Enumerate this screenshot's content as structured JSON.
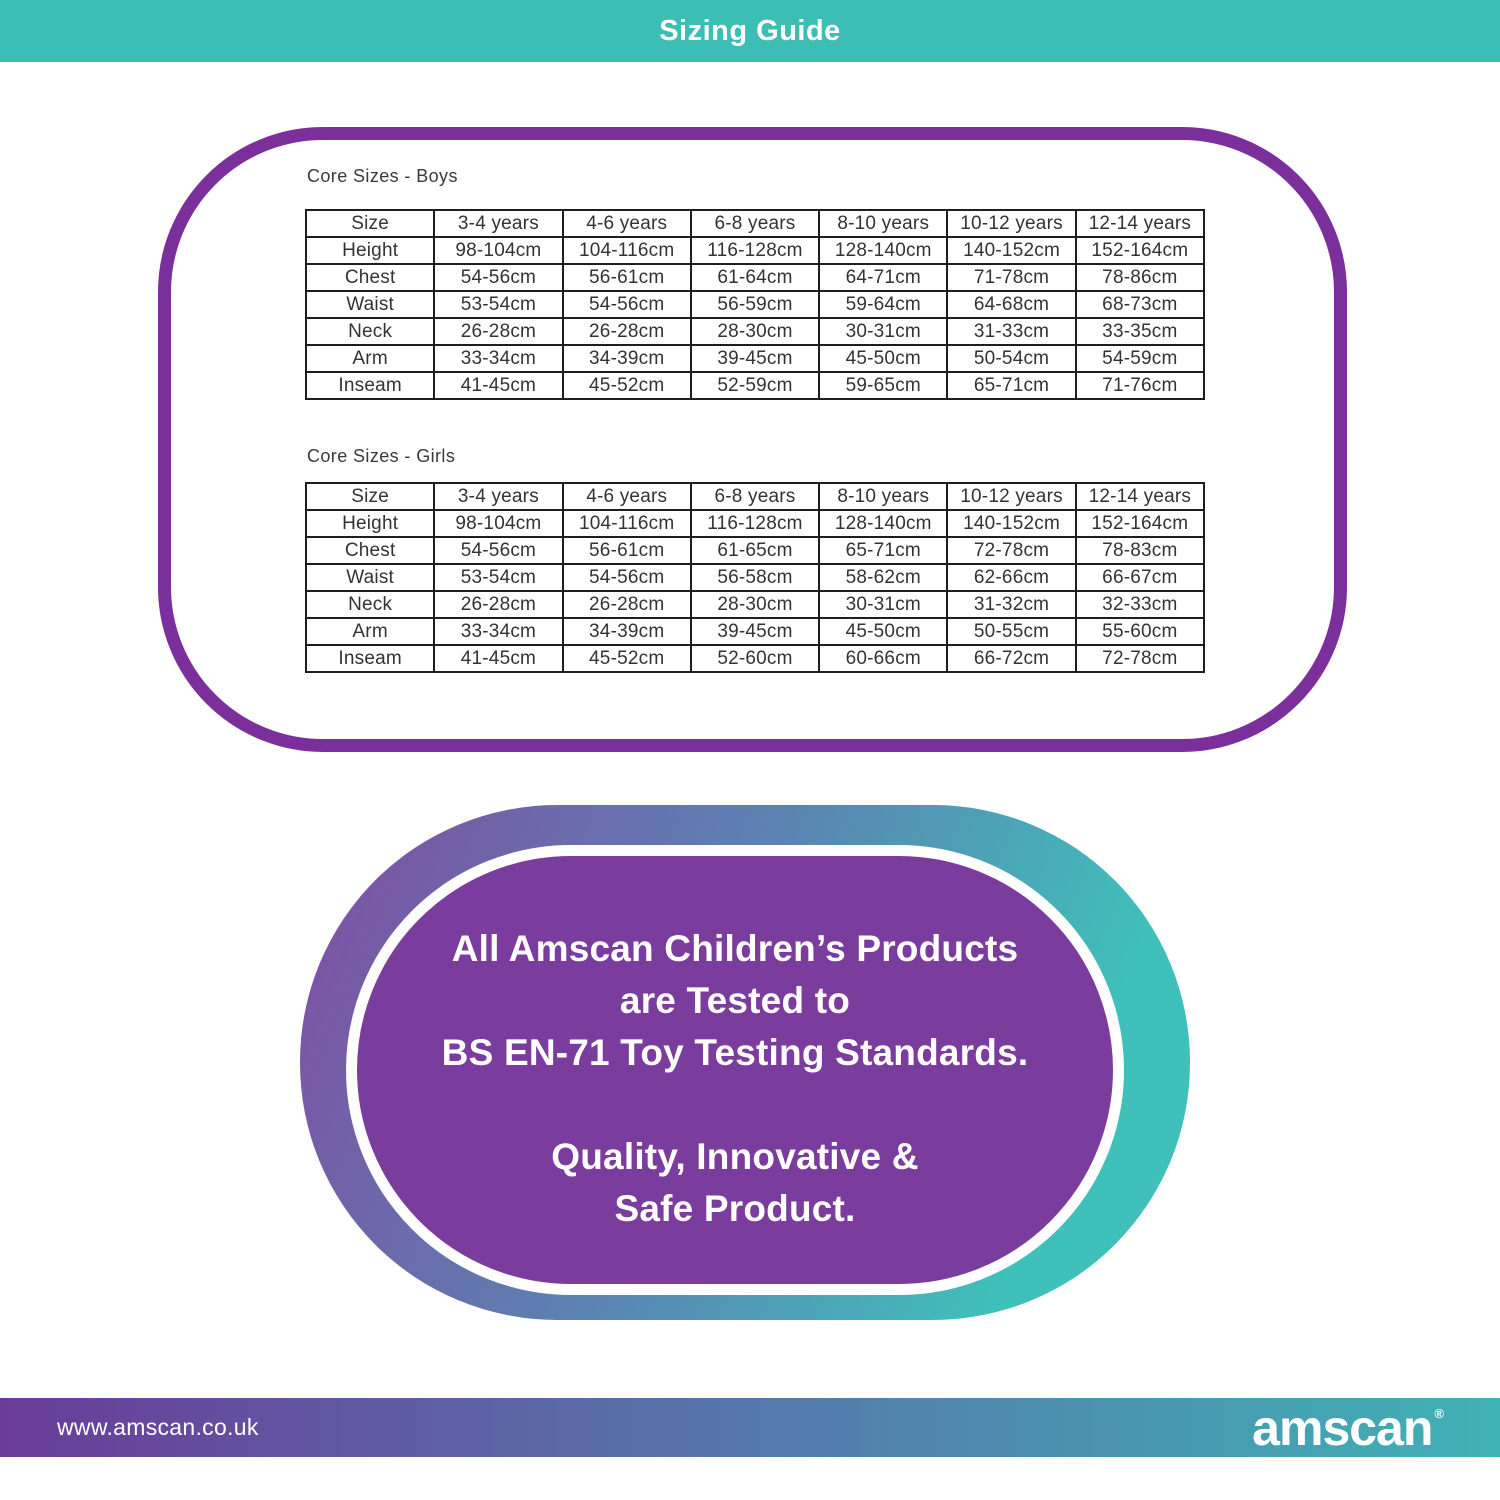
{
  "header": {
    "title": "Sizing Guide"
  },
  "tables": {
    "boys": {
      "title": "Core Sizes - Boys",
      "header_row": [
        "Size",
        "3-4 years",
        "4-6 years",
        "6-8 years",
        "8-10 years",
        "10-12 years",
        "12-14 years"
      ],
      "rows": [
        [
          "Height",
          "98-104cm",
          "104-116cm",
          "116-128cm",
          "128-140cm",
          "140-152cm",
          "152-164cm"
        ],
        [
          "Chest",
          "54-56cm",
          "56-61cm",
          "61-64cm",
          "64-71cm",
          "71-78cm",
          "78-86cm"
        ],
        [
          "Waist",
          "53-54cm",
          "54-56cm",
          "56-59cm",
          "59-64cm",
          "64-68cm",
          "68-73cm"
        ],
        [
          "Neck",
          "26-28cm",
          "26-28cm",
          "28-30cm",
          "30-31cm",
          "31-33cm",
          "33-35cm"
        ],
        [
          "Arm",
          "33-34cm",
          "34-39cm",
          "39-45cm",
          "45-50cm",
          "50-54cm",
          "54-59cm"
        ],
        [
          "Inseam",
          "41-45cm",
          "45-52cm",
          "52-59cm",
          "59-65cm",
          "65-71cm",
          "71-76cm"
        ]
      ]
    },
    "girls": {
      "title": "Core Sizes - Girls",
      "header_row": [
        "Size",
        "3-4 years",
        "4-6 years",
        "6-8 years",
        "8-10 years",
        "10-12 years",
        "12-14 years"
      ],
      "rows": [
        [
          "Height",
          "98-104cm",
          "104-116cm",
          "116-128cm",
          "128-140cm",
          "140-152cm",
          "152-164cm"
        ],
        [
          "Chest",
          "54-56cm",
          "56-61cm",
          "61-65cm",
          "65-71cm",
          "72-78cm",
          "78-83cm"
        ],
        [
          "Waist",
          "53-54cm",
          "54-56cm",
          "56-58cm",
          "58-62cm",
          "62-66cm",
          "66-67cm"
        ],
        [
          "Neck",
          "26-28cm",
          "26-28cm",
          "28-30cm",
          "30-31cm",
          "31-32cm",
          "32-33cm"
        ],
        [
          "Arm",
          "33-34cm",
          "34-39cm",
          "39-45cm",
          "45-50cm",
          "50-55cm",
          "55-60cm"
        ],
        [
          "Inseam",
          "41-45cm",
          "45-52cm",
          "52-60cm",
          "60-66cm",
          "66-72cm",
          "72-78cm"
        ]
      ]
    }
  },
  "badge": {
    "line1": "All Amscan Children’s Products",
    "line2": "are Tested to",
    "line3": "BS EN-71 Toy Testing Standards.",
    "line4": "Quality, Innovative &",
    "line5": "Safe Product."
  },
  "footer": {
    "website": "www.amscan.co.uk",
    "brand": "amscan",
    "trademark": "®"
  },
  "colors": {
    "teal": "#3cbeb4",
    "panel_purple": "#7a2f9b",
    "badge_purple": "#7a3d9e",
    "grad_purple": "#7d52a4",
    "grad_blue": "#5578ac",
    "grad_teal": "#3fc0ba",
    "table_line": "#1e1e1e",
    "text_dark": "#3a3a3a"
  }
}
